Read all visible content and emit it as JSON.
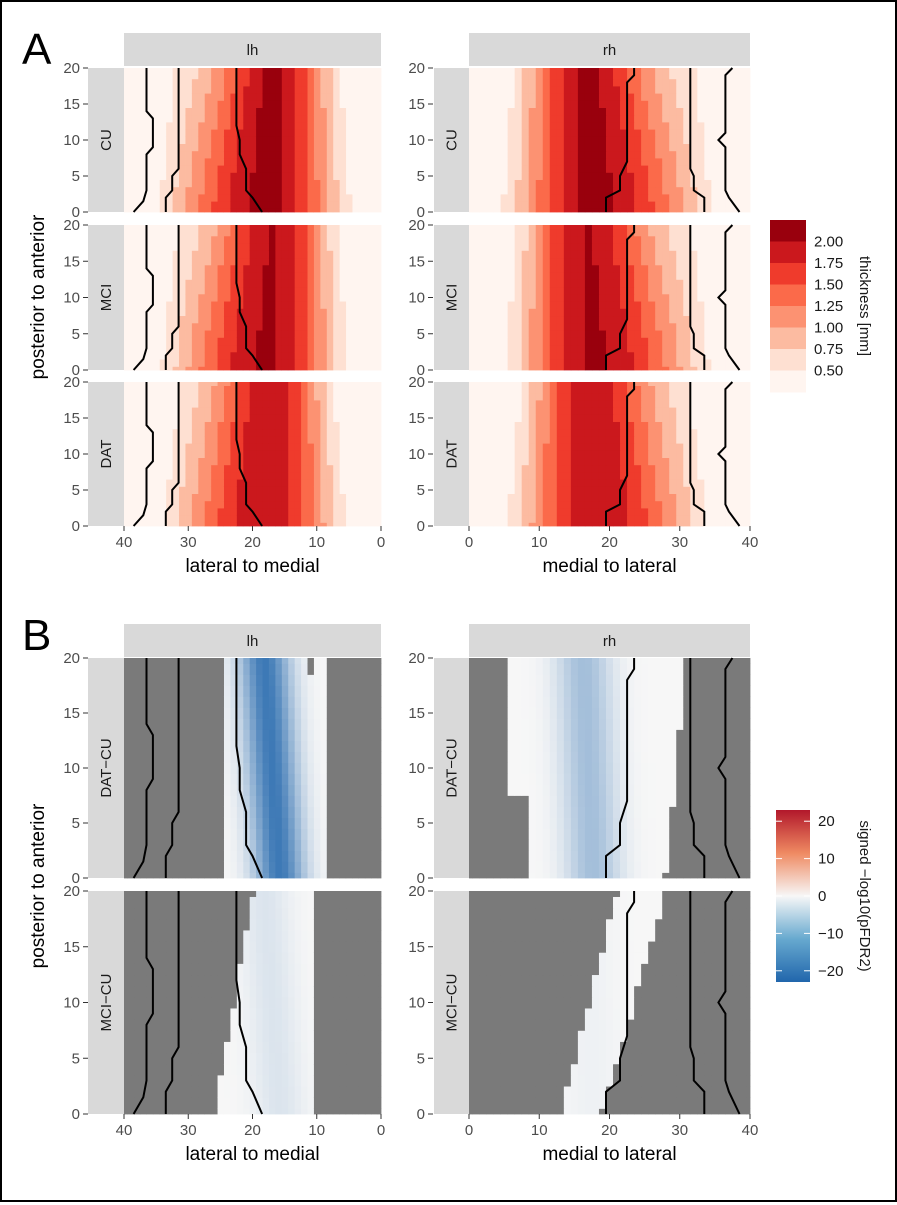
{
  "panel_labels": [
    "A",
    "B"
  ],
  "chart_data": [
    {
      "type": "heatmap",
      "panel": "A",
      "facet_cols": [
        "lh",
        "rh"
      ],
      "facet_rows": [
        "CU",
        "MCI",
        "DAT"
      ],
      "xlabels": [
        "lateral to medial",
        "medial to lateral"
      ],
      "ylabel": "posterior to anterior",
      "xticks_lh": [
        "40",
        "30",
        "20",
        "10",
        "0"
      ],
      "xticks_rh": [
        "0",
        "10",
        "20",
        "30",
        "40"
      ],
      "yticks": [
        "0",
        "5",
        "10",
        "15",
        "20"
      ],
      "xlim": [
        0,
        40
      ],
      "ylim": [
        0,
        20
      ],
      "legend": {
        "title": "thickness [mm]",
        "ticks": [
          "2.00",
          "1.75",
          "1.50",
          "1.25",
          "1.00",
          "0.75",
          "0.50"
        ],
        "colors": [
          "#fff5f0",
          "#fee0d2",
          "#fcbba1",
          "#fc9272",
          "#fb6a4a",
          "#ef3b2c",
          "#cb181d",
          "#99000d"
        ],
        "placement": "right"
      },
      "peak_thickness_mm": 2.1,
      "peak_position": 17.5,
      "contour_positions_lh": [
        36,
        32,
        22
      ],
      "contour_positions_rh": [
        22,
        32,
        36
      ]
    },
    {
      "type": "heatmap",
      "panel": "B",
      "facet_cols": [
        "lh",
        "rh"
      ],
      "facet_rows": [
        "DAT−CU",
        "MCI−CU"
      ],
      "xlabels": [
        "lateral to medial",
        "medial to lateral"
      ],
      "ylabel": "posterior to anterior",
      "xticks_lh": [
        "40",
        "30",
        "20",
        "10",
        "0"
      ],
      "xticks_rh": [
        "0",
        "10",
        "20",
        "30",
        "40"
      ],
      "yticks": [
        "0",
        "5",
        "10",
        "15",
        "20"
      ],
      "xlim": [
        0,
        40
      ],
      "ylim": [
        0,
        20
      ],
      "legend": {
        "title": "signed −log10(pFDR2)",
        "ticks": [
          "20",
          "10",
          "0",
          "−10",
          "−20"
        ],
        "range": [
          -23,
          23
        ],
        "low_color": "#2166ac",
        "mid_color": "#f7f7f7",
        "high_color": "#b2182b",
        "placement": "right"
      },
      "nonsignificant_color": "#7a7a7a",
      "min_value_DAT_CU_lh": -20,
      "min_value_DAT_CU_rh": -9,
      "min_value_MCI_CU_lh": -3,
      "min_value_MCI_CU_rh": -1
    }
  ]
}
